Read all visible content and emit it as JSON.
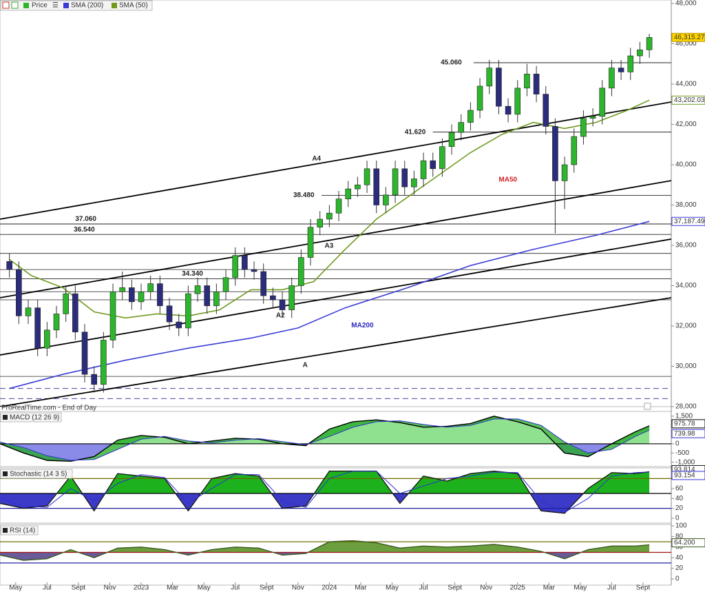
{
  "chart_data": [
    {
      "type": "candlestick",
      "name": "Price",
      "note": "ProRealTime.com - End of Day",
      "up_color": "#2db52d",
      "down_color": "#2c2c7c",
      "xlim": [
        0,
        42.8
      ],
      "xticks": [
        {
          "value": 1,
          "label": "May"
        },
        {
          "value": 3,
          "label": "Jul"
        },
        {
          "value": 5,
          "label": "Sept"
        },
        {
          "value": 7,
          "label": "Nov"
        },
        {
          "value": 9,
          "label": "2023"
        },
        {
          "value": 11,
          "label": "Mar"
        },
        {
          "value": 13,
          "label": "May"
        },
        {
          "value": 15,
          "label": "Jul"
        },
        {
          "value": 17,
          "label": "Sept"
        },
        {
          "value": 19,
          "label": "Nov"
        },
        {
          "value": 21,
          "label": "2024"
        },
        {
          "value": 23,
          "label": "Mar"
        },
        {
          "value": 25,
          "label": "May"
        },
        {
          "value": 27,
          "label": "Jul"
        },
        {
          "value": 29,
          "label": "Sept"
        },
        {
          "value": 31,
          "label": "Nov"
        },
        {
          "value": 33,
          "label": "2025"
        },
        {
          "value": 35,
          "label": "Mar"
        },
        {
          "value": 37,
          "label": "May"
        },
        {
          "value": 39,
          "label": "Jul"
        },
        {
          "value": 41,
          "label": "Sept"
        }
      ],
      "ylim": [
        28000,
        48000
      ],
      "yticks": [
        {
          "value": 28000,
          "label": "28,000"
        },
        {
          "value": 30000,
          "label": "30,000"
        },
        {
          "value": 32000,
          "label": "32,000"
        },
        {
          "value": 34000,
          "label": "34,000"
        },
        {
          "value": 36000,
          "label": "36,000"
        },
        {
          "value": 38000,
          "label": "38,000"
        },
        {
          "value": 40000,
          "label": "40,000"
        },
        {
          "value": 42000,
          "label": "42,000"
        },
        {
          "value": 44000,
          "label": "44,000"
        },
        {
          "value": 46000,
          "label": "46,000"
        },
        {
          "value": 48000,
          "label": "48,000"
        }
      ],
      "x": [
        0.6,
        1.2,
        1.8,
        2.4,
        3,
        3.6,
        4.2,
        4.8,
        5.4,
        6,
        6.6,
        7.2,
        7.8,
        8.4,
        9,
        9.6,
        10.2,
        10.8,
        11.4,
        12,
        12.6,
        13.2,
        13.8,
        14.4,
        15,
        15.6,
        16.2,
        16.8,
        17.4,
        18,
        18.6,
        19.2,
        19.8,
        20.4,
        21,
        21.6,
        22.2,
        22.8,
        23.4,
        24,
        24.6,
        25.2,
        25.8,
        26.4,
        27,
        27.6,
        28.2,
        28.8,
        29.4,
        30,
        30.6,
        31.2,
        31.8,
        32.4,
        33,
        33.6,
        34.2,
        34.8,
        35.4,
        36,
        36.6,
        37.2,
        37.8,
        38.4,
        39,
        39.6,
        40.2,
        40.8,
        41.4
      ],
      "open": [
        35200,
        34800,
        32500,
        32900,
        30900,
        31800,
        32600,
        33600,
        31700,
        29600,
        29100,
        31300,
        33700,
        33900,
        33200,
        33700,
        34100,
        33000,
        32200,
        31900,
        33600,
        34000,
        33000,
        33700,
        34400,
        35500,
        34800,
        34700,
        33500,
        33300,
        32800,
        34000,
        35400,
        36900,
        37300,
        37600,
        38300,
        38800,
        39000,
        39800,
        38000,
        38500,
        39800,
        38900,
        39300,
        40200,
        39800,
        40900,
        41600,
        42100,
        42700,
        43900,
        44800,
        42900,
        42500,
        43800,
        44500,
        43500,
        41900,
        39200,
        40000,
        41400,
        42300,
        42400,
        43800,
        44800,
        44600,
        45400,
        45700
      ],
      "high": [
        35600,
        35200,
        33300,
        33300,
        32200,
        33000,
        34000,
        34000,
        32100,
        30000,
        31700,
        34100,
        34700,
        34300,
        34100,
        34500,
        34500,
        33400,
        32600,
        34000,
        34400,
        34400,
        34100,
        34800,
        35900,
        35900,
        35200,
        35100,
        33900,
        33700,
        34400,
        35800,
        37300,
        37700,
        38000,
        38700,
        39200,
        39400,
        40200,
        40200,
        38900,
        40200,
        40200,
        39700,
        40600,
        40600,
        41300,
        42000,
        42500,
        43100,
        44300,
        45200,
        45200,
        43300,
        44200,
        45000,
        44900,
        43900,
        42300,
        40400,
        41800,
        42700,
        42800,
        44200,
        45200,
        45200,
        45800,
        46100,
        46500
      ],
      "low": [
        34400,
        32100,
        32100,
        30500,
        30500,
        31400,
        32200,
        31300,
        29200,
        28700,
        28700,
        30900,
        33300,
        32800,
        32800,
        33300,
        32600,
        31800,
        31500,
        31500,
        33200,
        32600,
        32600,
        33300,
        34000,
        34400,
        34300,
        33100,
        32900,
        32400,
        32400,
        33600,
        35000,
        36500,
        36900,
        37200,
        37900,
        38400,
        38600,
        37600,
        37600,
        38100,
        38500,
        38500,
        38900,
        39400,
        39400,
        40500,
        41200,
        41700,
        42300,
        43500,
        42500,
        42100,
        42100,
        43400,
        43100,
        41500,
        36600,
        37800,
        39600,
        41000,
        41900,
        42000,
        43400,
        44200,
        44200,
        45000,
        45300
      ],
      "close": [
        34800,
        32500,
        32900,
        30900,
        31800,
        32600,
        33600,
        31700,
        29600,
        29100,
        31300,
        33700,
        33900,
        33200,
        33700,
        34100,
        33000,
        32200,
        31900,
        33600,
        34000,
        33000,
        33700,
        34400,
        35500,
        34800,
        34700,
        33500,
        33300,
        32800,
        34000,
        35400,
        36900,
        37300,
        37600,
        38300,
        38800,
        39000,
        39800,
        38000,
        38500,
        39800,
        38900,
        39300,
        40200,
        39800,
        40900,
        41600,
        42100,
        42700,
        43900,
        44800,
        42900,
        42500,
        43800,
        44500,
        43500,
        41900,
        39200,
        40000,
        41400,
        42300,
        42400,
        43800,
        44800,
        44600,
        45400,
        45700,
        46315.27
      ],
      "last_label": "46,315.27",
      "last_color": "#ffd400",
      "lines": [
        {
          "name": "SMA (200)",
          "color": "#3b3bd6",
          "x": [
            0.6,
            4,
            8,
            12,
            16,
            19,
            22,
            26,
            30,
            34,
            38,
            41.4
          ],
          "values": [
            28900,
            29600,
            30300,
            30900,
            31400,
            31900,
            32900,
            33900,
            35000,
            35800,
            36500,
            37187.49
          ],
          "last_label": "37,187.49"
        },
        {
          "name": "SMA (50)",
          "color": "#6f9a1f",
          "x": [
            0.6,
            2,
            4,
            6,
            8,
            10,
            12,
            14,
            16,
            18,
            20,
            22,
            24,
            26,
            28,
            30,
            32,
            34,
            36,
            38,
            40,
            41.4
          ],
          "values": [
            35300,
            34500,
            33900,
            32700,
            32400,
            32600,
            32500,
            32800,
            33800,
            33800,
            34200,
            35800,
            37300,
            38400,
            39500,
            40600,
            41500,
            42100,
            41800,
            42100,
            42700,
            43202.03
          ],
          "last_label": "43,202.03"
        }
      ],
      "levels": [
        {
          "value": 45060,
          "label": "45.060",
          "start": 30.2,
          "label_x": 28.1
        },
        {
          "value": 41620,
          "label": "41.620",
          "start": 27.6,
          "label_x": 25.8
        },
        {
          "value": 38480,
          "label": "38.480",
          "start": 20.5,
          "label_x": 18.7
        },
        {
          "value": 37060,
          "label": "37.060",
          "start": 0,
          "label_x": 4.8
        },
        {
          "value": 36540,
          "label": "36.540",
          "start": 0,
          "label_x": 4.7
        },
        {
          "value": 34340,
          "label": "34.340",
          "start": 0,
          "label_x": 11.6
        }
      ],
      "plain_levels": [
        35600,
        34800,
        33700,
        33300,
        29500
      ],
      "dashed_levels": [
        28900,
        28400
      ],
      "trendlines": [
        {
          "label": "A4",
          "x": [
            0,
            42.8
          ],
          "values": [
            37300,
            43110
          ],
          "label_at": [
            19.9,
            40300
          ]
        },
        {
          "label": "A3",
          "x": [
            0,
            42.8
          ],
          "values": [
            33400,
            39210
          ],
          "label_at": [
            20.7,
            35970
          ]
        },
        {
          "label": "A2",
          "x": [
            0,
            42.8
          ],
          "values": [
            30560,
            36310
          ],
          "label_at": [
            17.6,
            32510
          ]
        },
        {
          "label": "A",
          "x": [
            0,
            42.8
          ],
          "values": [
            28000,
            33400
          ],
          "label_at": [
            19.3,
            30050
          ]
        }
      ],
      "annotations": [
        {
          "text": "MA50",
          "color": "#d02020",
          "x": 31.8,
          "y": 39250
        },
        {
          "text": "MA200",
          "color": "#2828c0",
          "x": 22.4,
          "y": 32030
        }
      ]
    },
    {
      "type": "macd",
      "title": "MACD (12 26 9)",
      "ylim": [
        -1200,
        1720
      ],
      "yticks": [
        {
          "value": 1500,
          "label": "1,500"
        },
        0,
        -500,
        {
          "value": -1000,
          "label": "-1,000"
        }
      ],
      "levels": [
        {
          "value": 0,
          "color": "#000000"
        }
      ],
      "base": 0,
      "up_color": "#8fe08f",
      "down_color": "#8a8ae8",
      "band_color": "#22aa22",
      "x": [
        0,
        1.5,
        3,
        4.5,
        6,
        7.5,
        9,
        10.5,
        12,
        13.5,
        15,
        16.5,
        18,
        19.5,
        21,
        22.5,
        24,
        25.5,
        27,
        28.5,
        30,
        31.5,
        33,
        34.5,
        36,
        37.5,
        39,
        40.5,
        41.4
      ],
      "series": [
        {
          "color": "#000000",
          "values": [
            0,
            -500,
            -900,
            -950,
            -700,
            200,
            450,
            350,
            0,
            150,
            300,
            250,
            0,
            -100,
            800,
            1200,
            1300,
            1150,
            900,
            950,
            1100,
            1500,
            1200,
            800,
            -500,
            -700,
            0,
            650,
            975.78
          ],
          "last_label": "975.78"
        },
        {
          "color": "#3030d0",
          "values": [
            100,
            -200,
            -650,
            -900,
            -850,
            -300,
            250,
            400,
            150,
            50,
            200,
            280,
            120,
            -50,
            400,
            900,
            1200,
            1250,
            1050,
            900,
            1000,
            1350,
            1350,
            1000,
            100,
            -500,
            -300,
            400,
            739.98
          ],
          "last_label": "739.98"
        }
      ]
    },
    {
      "type": "stochastic",
      "title": "Stochastic (14 3 5)",
      "ylim": [
        0,
        100
      ],
      "yticks": [
        0,
        20,
        40,
        60
      ],
      "levels": [
        {
          "value": 80,
          "color": "#6b6b00"
        },
        {
          "value": 50,
          "color": "#000000"
        },
        {
          "value": 20,
          "color": "#2020a0"
        }
      ],
      "base": 50,
      "up_color": "#1db21d",
      "down_color": "#3b3bc8",
      "x": [
        0,
        1.5,
        3,
        4.5,
        6,
        7.5,
        9,
        10.5,
        12,
        13.5,
        15,
        16.5,
        18,
        19.5,
        21,
        22.5,
        24,
        25.5,
        27,
        28.5,
        30,
        31.5,
        33,
        34.5,
        36,
        37.5,
        39,
        40.5,
        41.4
      ],
      "series": [
        {
          "color": "#1a1a1a",
          "values": [
            30,
            20,
            25,
            85,
            15,
            90,
            85,
            80,
            15,
            80,
            90,
            85,
            20,
            25,
            95,
            95,
            95,
            30,
            85,
            75,
            90,
            95,
            90,
            15,
            10,
            60,
            92,
            90,
            93.814
          ],
          "last_label": "93.814"
        },
        {
          "color": "#3030d0",
          "values": [
            40,
            25,
            22,
            60,
            35,
            70,
            88,
            82,
            30,
            60,
            88,
            88,
            35,
            22,
            80,
            95,
            95,
            50,
            65,
            80,
            85,
            93,
            92,
            35,
            12,
            40,
            85,
            92,
            93.154
          ],
          "last_label": "93.154"
        }
      ]
    },
    {
      "type": "rsi",
      "title": "RSI (14)",
      "ylim": [
        0,
        100
      ],
      "yticks": [
        0,
        20,
        40,
        60,
        80,
        100
      ],
      "levels": [
        {
          "value": 70,
          "color": "#6b6b00"
        },
        {
          "value": 50,
          "color": "#a01010"
        },
        {
          "value": 30,
          "color": "#2020a0"
        }
      ],
      "base": 50,
      "up_color": "#6b9e3c",
      "down_color": "#6a5a9a",
      "x": [
        0,
        1.5,
        3,
        4.5,
        6,
        7.5,
        9,
        10.5,
        12,
        13.5,
        15,
        16.5,
        18,
        19.5,
        21,
        22.5,
        24,
        25.5,
        27,
        28.5,
        30,
        31.5,
        33,
        34.5,
        36,
        37.5,
        39,
        40.5,
        41.4
      ],
      "series": [
        {
          "color": "#3a5a20",
          "values": [
            45,
            35,
            38,
            55,
            40,
            58,
            60,
            55,
            45,
            55,
            60,
            58,
            45,
            48,
            70,
            72,
            68,
            58,
            62,
            60,
            62,
            65,
            60,
            52,
            38,
            55,
            62,
            62,
            64.2
          ],
          "last_label": "64.200"
        }
      ]
    }
  ]
}
